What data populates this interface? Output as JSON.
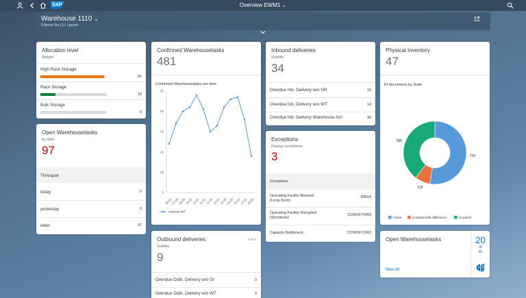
{
  "shell": {
    "title": "Overview EWM1",
    "logo": "SAP"
  },
  "header": {
    "warehouse": "Warehouse 1110",
    "filter": "Filtered By (1): Lgnum"
  },
  "allocation": {
    "title": "Allocation level",
    "subtitle": "Weight",
    "items": [
      {
        "label": "High Rack Storage",
        "value": "81",
        "fraction": 0.97,
        "color": "#e9730c"
      },
      {
        "label": "Rack Storage",
        "value": "19",
        "fraction": 0.23,
        "color": "#107e3e"
      },
      {
        "label": "Bulk Storage",
        "value": "0",
        "fraction": 0,
        "color": "#d9d9d9"
      }
    ]
  },
  "open_tasks": {
    "title": "Open Warehousetasks",
    "subtitle": "by date",
    "kpi": "97",
    "column": "Timespan",
    "rows": [
      {
        "label": "today",
        "value": "0"
      },
      {
        "label": "yesterday",
        "value": "0"
      },
      {
        "label": "older",
        "value": "97"
      }
    ]
  },
  "confirmed": {
    "title": "Confirmed Warehousetasks",
    "kpi": "481",
    "chart_title": "Confirmed Warehousetasks per time",
    "legend": "Amount WT"
  },
  "chart_data": {
    "type": "line",
    "categories": [
      "06:00",
      "07:00",
      "08:00",
      "09:00",
      "10:00",
      "11:00",
      "12:00",
      "13:00",
      "14:00",
      "15:00",
      "16:00",
      "17:00",
      "18:00"
    ],
    "series": [
      {
        "name": "Amount WT",
        "values": [
          24,
          34,
          40,
          42,
          48,
          41,
          30,
          33,
          42,
          46,
          47,
          36,
          18
        ]
      }
    ],
    "ylim": [
      0,
      50
    ],
    "yticks": [
      0,
      10,
      20,
      30,
      40,
      50
    ],
    "color": "#5899da"
  },
  "inbound": {
    "title": "Inbound deliveries",
    "subtitle": "Subtitle",
    "kpi": "34",
    "rows": [
      {
        "label": "Overdue Inb. Delivery w/o GR",
        "value": "16"
      },
      {
        "label": "Overdue Inb. Delivery w/o WT",
        "value": "14"
      },
      {
        "label": "Overdue Inb. Delivery Warehouse Act",
        "value": "34"
      }
    ]
  },
  "exceptions": {
    "title": "Exceptions",
    "subtitle": "Display exceptions",
    "kpi": "3",
    "column": "Exceptions",
    "rows": [
      {
        "label": "Operating Facility Blocked",
        "label2": "(Long-Term)",
        "value": "RBG4"
      },
      {
        "label": "Operating Facility Disrupted",
        "label2": "(Shortterm)",
        "value": "CONVEYOR3"
      },
      {
        "label": "Capacity Bottleneck",
        "label2": "",
        "value": "CONVEYOR2"
      }
    ]
  },
  "outbound": {
    "title": "Outbound deliveries",
    "counter": "3 of 6",
    "subtitle": "Subtitle",
    "kpi": "9",
    "rows": [
      {
        "label": "Overdue Outb. Delivery w/o GI",
        "value": "9"
      },
      {
        "label": "Overdue Outb. Delivery w/o WT",
        "value": "0"
      }
    ]
  },
  "physical": {
    "title": "Physical Inventory",
    "kpi": "47",
    "subtitle": "PI documents by State",
    "donut": [
      {
        "name": "Active",
        "value": 794,
        "label": "794",
        "color": "#5899da"
      },
      {
        "name": "Counted with difference",
        "value": 118,
        "label": "118",
        "color": "#e8743b"
      },
      {
        "name": "Counted",
        "value": 598,
        "label": "598",
        "color": "#19a979"
      }
    ]
  },
  "open_tasks2": {
    "title": "Open Warehousetasks",
    "count": "20",
    "of": "of",
    "total": "40",
    "link": "View All"
  }
}
